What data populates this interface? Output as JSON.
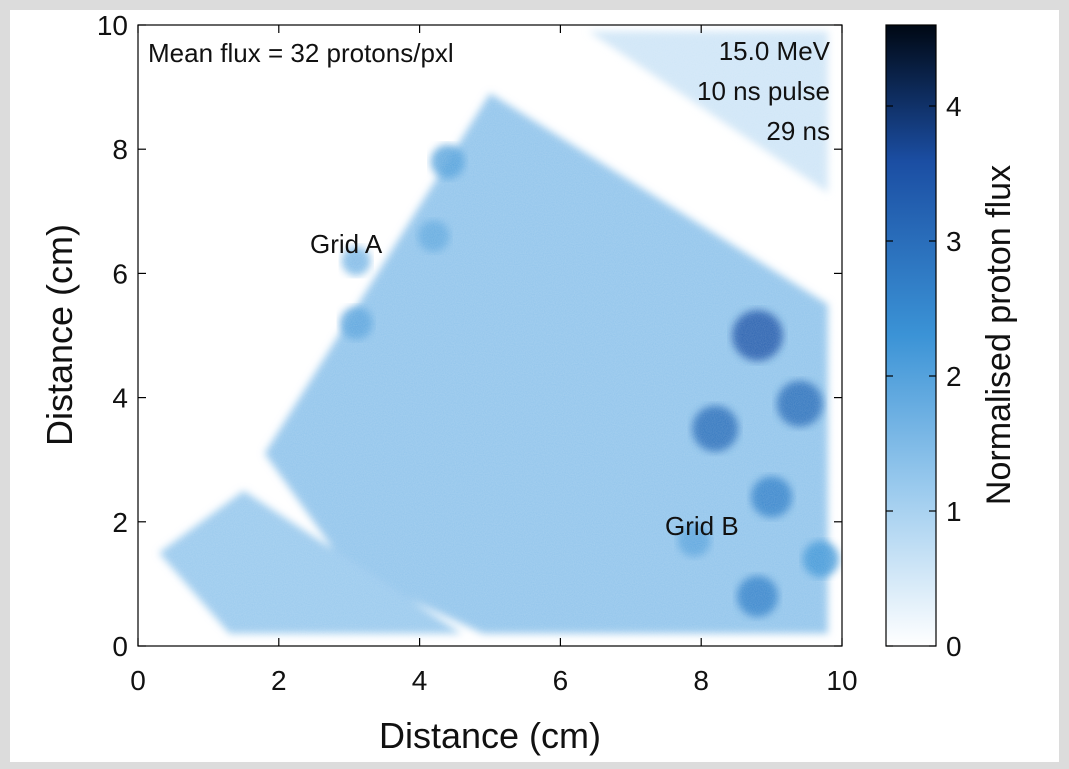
{
  "chart_data": {
    "type": "heatmap",
    "title": "",
    "xlabel": "Distance (cm)",
    "ylabel": "Distance (cm)",
    "xlim": [
      0,
      10
    ],
    "ylim": [
      0,
      10
    ],
    "xticks": [
      "0",
      "2",
      "4",
      "6",
      "8",
      "10"
    ],
    "yticks": [
      "0",
      "2",
      "4",
      "6",
      "8",
      "10"
    ],
    "colorbar": {
      "label": "Normalised proton flux",
      "range": [
        0,
        4.6
      ],
      "ticks": [
        "0",
        "1",
        "2",
        "3",
        "4"
      ],
      "colors": [
        "#ffffff",
        "#9ccbee",
        "#3b93d6",
        "#1b4ea3",
        "#000814"
      ]
    },
    "annotations": {
      "mean_flux": "Mean flux = 32 protons/pxl",
      "energy": "15.0 MeV",
      "pulse": "10 ns pulse",
      "time": "29 ns",
      "grid_a": "Grid A",
      "grid_b": "Grid B"
    },
    "regions": [
      {
        "name": "upper-mesh-square",
        "flux": 1.25,
        "polygon": [
          [
            1.8,
            3.1
          ],
          [
            5.0,
            8.9
          ],
          [
            9.8,
            5.5
          ],
          [
            9.8,
            0.2
          ],
          [
            4.9,
            0.2
          ],
          [
            3.0,
            1.2
          ]
        ]
      },
      {
        "name": "lower-left-mesh-strip",
        "flux": 1.15,
        "polygon": [
          [
            0.3,
            1.5
          ],
          [
            1.5,
            2.5
          ],
          [
            4.6,
            0.2
          ],
          [
            1.3,
            0.2
          ]
        ]
      },
      {
        "name": "upper-right-band",
        "flux": 0.55,
        "polygon": [
          [
            6.4,
            9.9
          ],
          [
            9.8,
            9.9
          ],
          [
            9.8,
            7.3
          ]
        ]
      }
    ],
    "blobs": [
      {
        "label": "Grid A",
        "x": 4.4,
        "y": 7.8,
        "value": 2.0
      },
      {
        "label": "Grid A",
        "x": 4.2,
        "y": 6.6,
        "value": 1.8
      },
      {
        "label": "Grid A",
        "x": 3.1,
        "y": 6.2,
        "value": 1.6
      },
      {
        "label": "Grid A",
        "x": 3.1,
        "y": 5.2,
        "value": 1.9
      },
      {
        "label": "",
        "x": 8.8,
        "y": 5.0,
        "value": 3.4
      },
      {
        "label": "",
        "x": 8.2,
        "y": 3.5,
        "value": 3.0
      },
      {
        "label": "Grid B",
        "x": 9.4,
        "y": 3.9,
        "value": 3.0
      },
      {
        "label": "Grid B",
        "x": 9.0,
        "y": 2.4,
        "value": 2.6
      },
      {
        "label": "Grid B",
        "x": 7.9,
        "y": 1.7,
        "value": 1.9
      },
      {
        "label": "Grid B",
        "x": 9.7,
        "y": 1.4,
        "value": 2.2
      },
      {
        "label": "Grid B",
        "x": 8.8,
        "y": 0.8,
        "value": 2.6
      }
    ]
  }
}
